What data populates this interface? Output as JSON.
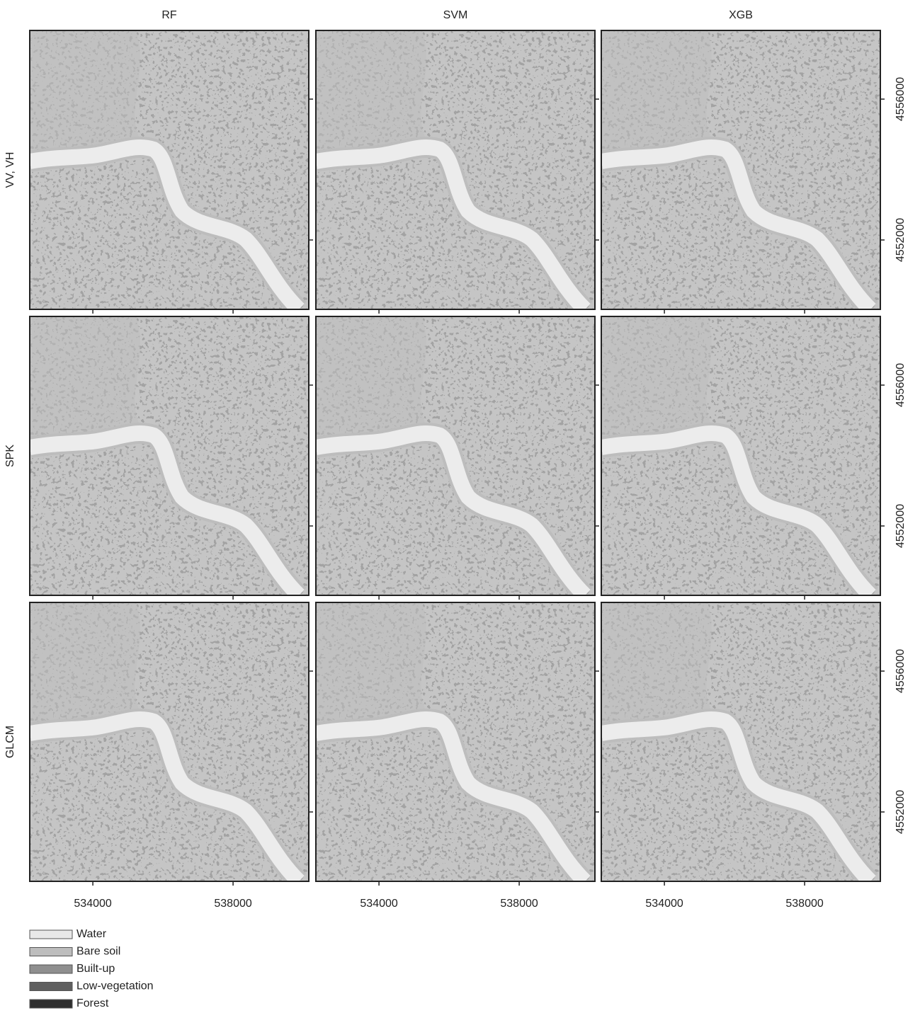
{
  "columns": [
    "RF",
    "SVM",
    "XGB"
  ],
  "rows": [
    "VV, VH",
    "SPK",
    "GLCM"
  ],
  "xlim": [
    532200,
    540160
  ],
  "ylim": [
    4550030,
    4557950
  ],
  "x_ticks": [
    534000,
    538000
  ],
  "y_ticks": [
    4556000,
    4552000
  ],
  "legend": [
    {
      "label": "Water",
      "color": "#e8e8e8"
    },
    {
      "label": "Bare soil",
      "color": "#bdbdbd"
    },
    {
      "label": "Built-up",
      "color": "#8f8f8f"
    },
    {
      "label": "Low-vegetation",
      "color": "#5f5f5f"
    },
    {
      "label": "Forest",
      "color": "#2e2e2e"
    }
  ]
}
